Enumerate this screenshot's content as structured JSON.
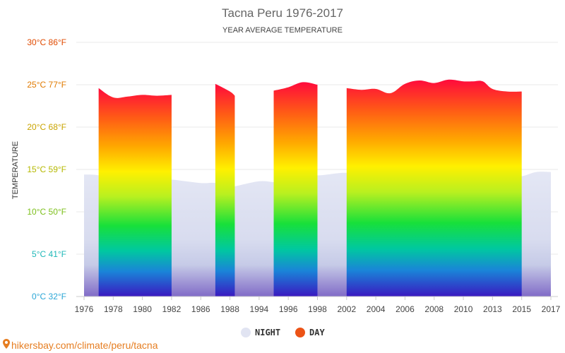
{
  "chart_data": {
    "type": "area",
    "title": "Tacna Peru 1976-2017",
    "subtitle": "YEAR AVERAGE TEMPERATURE",
    "ylabel": "TEMPERATURE",
    "ylim": [
      0,
      30
    ],
    "y_ticks": [
      {
        "value": 0,
        "label": "0°C 32°F",
        "color": "#2aa6d6"
      },
      {
        "value": 5,
        "label": "5°C 41°F",
        "color": "#1fb8b8"
      },
      {
        "value": 10,
        "label": "10°C 50°F",
        "color": "#7cbf1a"
      },
      {
        "value": 15,
        "label": "15°C 59°F",
        "color": "#b5b800"
      },
      {
        "value": 20,
        "label": "20°C 68°F",
        "color": "#c9a400"
      },
      {
        "value": 25,
        "label": "25°C 77°F",
        "color": "#e07a00"
      },
      {
        "value": 30,
        "label": "30°C 86°F",
        "color": "#e04a00"
      }
    ],
    "x_ticks": [
      "1976",
      "1978",
      "1980",
      "1982",
      "1986",
      "1988",
      "1994",
      "1996",
      "1998",
      "2002",
      "2004",
      "2006",
      "2008",
      "2010",
      "2013",
      "2015",
      "2017"
    ],
    "series": [
      {
        "name": "NIGHT",
        "color": "#e1e4f2",
        "points": [
          [
            "1976",
            14.4
          ],
          [
            "1977",
            14.3
          ],
          [
            "1978",
            13.6
          ],
          [
            "1979",
            14.0
          ],
          [
            "1980",
            14.0
          ],
          [
            "1981",
            13.8
          ],
          [
            "1982",
            13.8
          ],
          [
            "1986",
            13.4
          ],
          [
            "1987",
            13.4
          ],
          [
            "1988",
            12.9
          ],
          [
            "1989",
            13.0
          ],
          [
            "1994",
            13.6
          ],
          [
            "1995",
            13.5
          ],
          [
            "1996",
            13.4
          ],
          [
            "1997",
            14.6
          ],
          [
            "1998",
            14.3
          ],
          [
            "2002",
            14.6
          ],
          [
            "2003",
            13.9
          ],
          [
            "2004",
            13.6
          ],
          [
            "2005",
            13.1
          ],
          [
            "2006",
            13.7
          ],
          [
            "2007",
            12.9
          ],
          [
            "2008",
            13.1
          ],
          [
            "2009",
            14.2
          ],
          [
            "2010",
            15.0
          ],
          [
            "2011",
            14.0
          ],
          [
            "2012",
            14.0
          ],
          [
            "2013",
            14.0
          ],
          [
            "2014",
            14.2
          ],
          [
            "2015",
            14.2
          ],
          [
            "2016",
            14.7
          ],
          [
            "2017",
            14.7
          ]
        ]
      },
      {
        "name": "DAY",
        "color": "#ec5316",
        "segments": [
          [
            [
              "1977",
              24.6
            ],
            [
              "1978",
              23.5
            ],
            [
              "1979",
              23.6
            ],
            [
              "1980",
              23.8
            ],
            [
              "1981",
              23.7
            ],
            [
              "1982",
              23.8
            ]
          ],
          [
            [
              "1987",
              25.1
            ],
            [
              "1988",
              24.2
            ],
            [
              "1989",
              23.7
            ]
          ],
          [
            [
              "1995",
              24.3
            ],
            [
              "1996",
              24.7
            ],
            [
              "1997",
              25.3
            ],
            [
              "1998",
              25.0
            ]
          ],
          [
            [
              "2002",
              24.6
            ],
            [
              "2003",
              24.4
            ],
            [
              "2004",
              24.5
            ],
            [
              "2005",
              24.0
            ],
            [
              "2006",
              25.1
            ],
            [
              "2007",
              25.5
            ],
            [
              "2008",
              25.2
            ],
            [
              "2009",
              25.6
            ],
            [
              "2010",
              25.4
            ],
            [
              "2011",
              25.4
            ],
            [
              "2012",
              25.4
            ],
            [
              "2013",
              24.5
            ],
            [
              "2014",
              24.2
            ],
            [
              "2015",
              24.2
            ]
          ]
        ]
      }
    ],
    "legend_position": "bottom-center",
    "grid": true
  },
  "source": "hikersbay.com/climate/peru/tacna",
  "colors": {
    "grid": "#e8e8e8",
    "axis": "#cccccc",
    "source": "#e67e22"
  }
}
